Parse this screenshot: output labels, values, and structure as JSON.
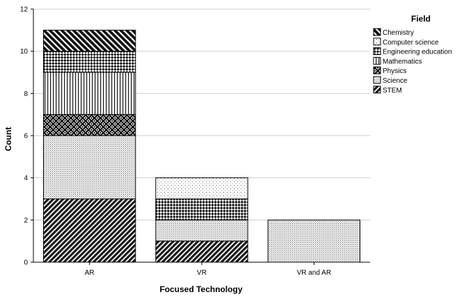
{
  "chart_data": {
    "type": "bar",
    "stacked": true,
    "categories": [
      "AR",
      "VR",
      "VR and AR"
    ],
    "series": [
      {
        "name": "STEM",
        "values": [
          3,
          1,
          0
        ],
        "pattern": "diag-dense-back"
      },
      {
        "name": "Science",
        "values": [
          3,
          1,
          2
        ],
        "pattern": "dots-fine"
      },
      {
        "name": "Physics",
        "values": [
          1,
          0,
          0
        ],
        "pattern": "checker-dark"
      },
      {
        "name": "Mathematics",
        "values": [
          2,
          0,
          0
        ],
        "pattern": "vertical-lines"
      },
      {
        "name": "Engineering education",
        "values": [
          1,
          1,
          0
        ],
        "pattern": "checker-light"
      },
      {
        "name": "Computer science",
        "values": [
          0,
          1,
          0
        ],
        "pattern": "dots-sparse"
      },
      {
        "name": "Chemistry",
        "values": [
          1,
          0,
          0
        ],
        "pattern": "diag-forward"
      }
    ],
    "legend_order": [
      "Chemistry",
      "Computer science",
      "Engineering education",
      "Mathematics",
      "Physics",
      "Science",
      "STEM"
    ],
    "title": "",
    "xlabel": "Focused Technology",
    "ylabel": "Count",
    "legend_title": "Field",
    "ylim": [
      0,
      12
    ],
    "yticks": [
      0,
      2,
      4,
      6,
      8,
      10,
      12
    ],
    "grid": true,
    "legend_position": "right"
  }
}
